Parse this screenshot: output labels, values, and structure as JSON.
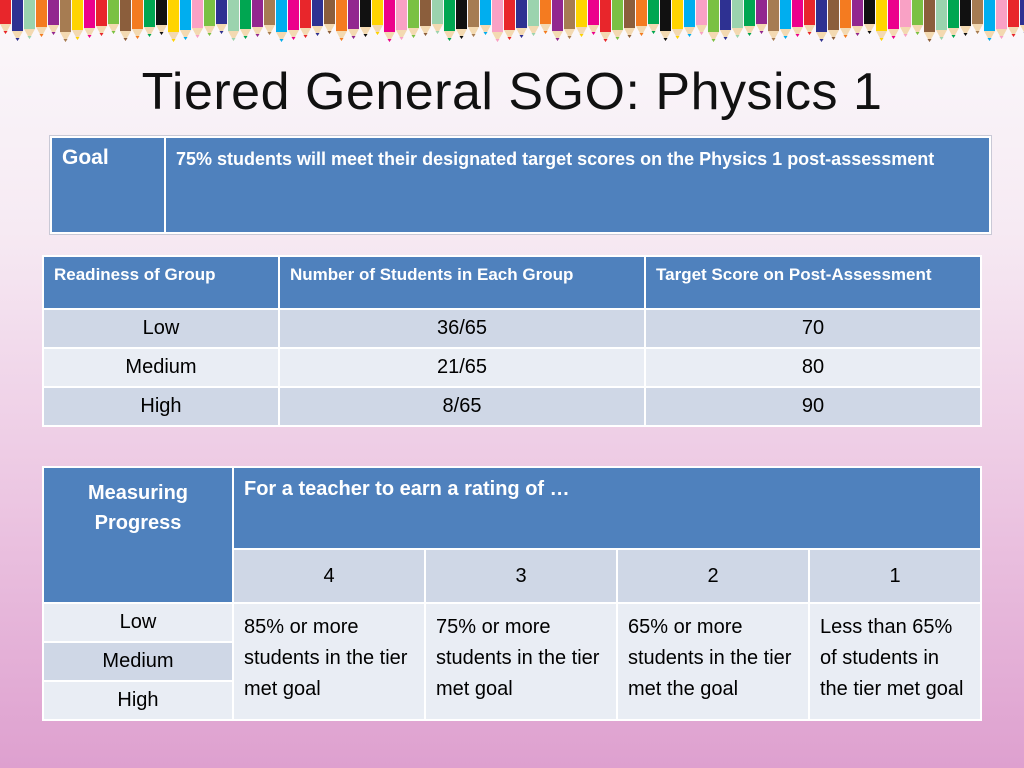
{
  "slide": {
    "title": "Tiered General SGO: Physics 1"
  },
  "goal_table": {
    "label": "Goal",
    "text": "75% students will meet their designated target scores on the Physics 1 post-assessment"
  },
  "readiness_table": {
    "headers": [
      "Readiness of Group",
      "Number of Students in Each Group",
      "Target Score on Post-Assessment"
    ],
    "rows": [
      [
        "Low",
        "36/65",
        "70"
      ],
      [
        "Medium",
        "21/65",
        "80"
      ],
      [
        "High",
        "8/65",
        "90"
      ]
    ]
  },
  "measuring_table": {
    "corner_label": "Measuring Progress",
    "span_header": "For a teacher to earn a rating of …",
    "ratings": [
      "4",
      "3",
      "2",
      "1"
    ],
    "tiers": [
      "Low",
      "Medium",
      "High"
    ],
    "descriptions": [
      "85% or more students in the tier met goal",
      "75% or more students in the tier met goal",
      "65% or more students in the tier met the goal",
      "Less than 65% of students in the tier met goal"
    ]
  },
  "colors": {
    "header_blue": "#4f81bd",
    "band_dark": "#cfd7e6",
    "band_light": "#e9edf4"
  }
}
